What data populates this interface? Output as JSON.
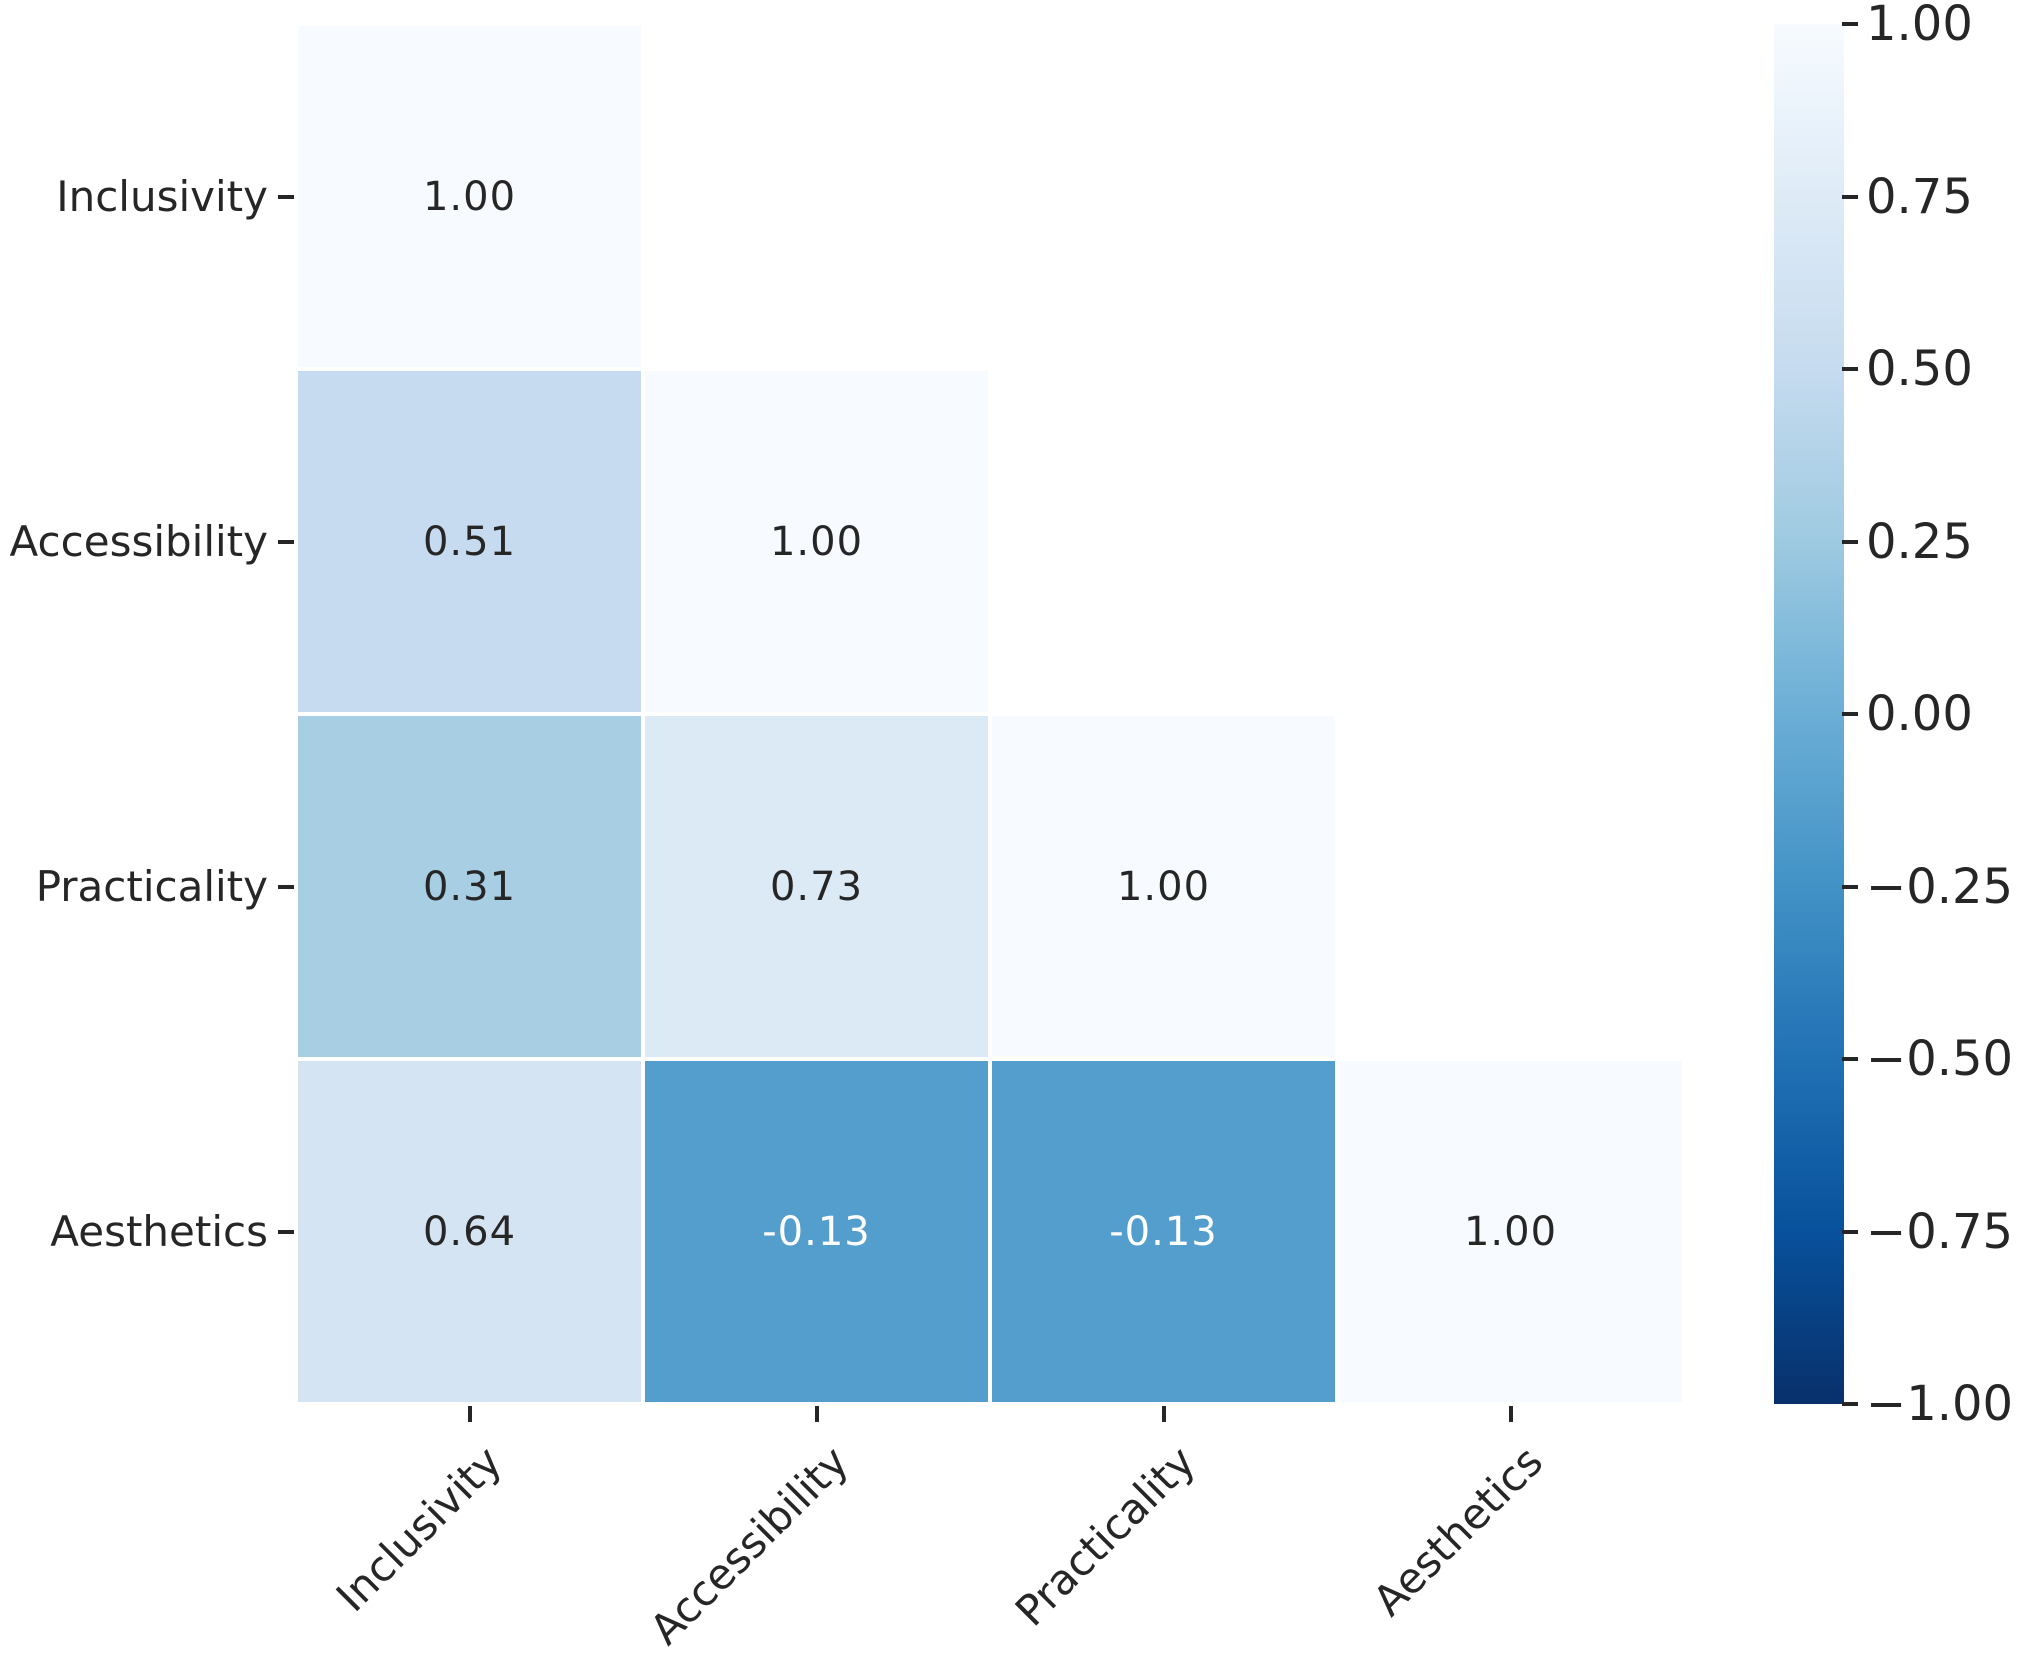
{
  "chart_data": {
    "type": "heatmap",
    "title": "",
    "xlabel": "",
    "ylabel": "",
    "colormap": "Blues reversed (high values light, low values dark)",
    "categories": [
      "Inclusivity",
      "Accessibility",
      "Practicality",
      "Aesthetics"
    ],
    "matrix": [
      [
        1.0,
        null,
        null,
        null
      ],
      [
        0.51,
        1.0,
        null,
        null
      ],
      [
        0.31,
        0.73,
        1.0,
        null
      ],
      [
        0.64,
        -0.13,
        -0.13,
        1.0
      ]
    ],
    "cells": [
      {
        "row": 0,
        "col": 0,
        "label": "1.00",
        "bg": "#f7fbff",
        "fg": "#262626"
      },
      {
        "row": 1,
        "col": 0,
        "label": "0.51",
        "bg": "#c6dbef",
        "fg": "#262626"
      },
      {
        "row": 1,
        "col": 1,
        "label": "1.00",
        "bg": "#f7fbff",
        "fg": "#262626"
      },
      {
        "row": 2,
        "col": 0,
        "label": "0.31",
        "bg": "#a8cee4",
        "fg": "#262626"
      },
      {
        "row": 2,
        "col": 1,
        "label": "0.73",
        "bg": "#dceaf6",
        "fg": "#262626"
      },
      {
        "row": 2,
        "col": 2,
        "label": "1.00",
        "bg": "#f7fbff",
        "fg": "#262626"
      },
      {
        "row": 3,
        "col": 0,
        "label": "0.64",
        "bg": "#d5e4f3",
        "fg": "#262626"
      },
      {
        "row": 3,
        "col": 1,
        "label": "-0.13",
        "bg": "#549ecd",
        "fg": "#ffffff"
      },
      {
        "row": 3,
        "col": 2,
        "label": "-0.13",
        "bg": "#549ecd",
        "fg": "#ffffff"
      },
      {
        "row": 3,
        "col": 3,
        "label": "1.00",
        "bg": "#f7fbff",
        "fg": "#262626"
      }
    ],
    "colorbar": {
      "vmin": -1.0,
      "vmax": 1.0,
      "tick_labels": [
        "1.00",
        "0.75",
        "0.50",
        "0.25",
        "0.00",
        "−0.25",
        "−0.50",
        "−0.75",
        "−1.00"
      ],
      "gradient": [
        "#f7fbff",
        "#deebf7",
        "#c6dbef",
        "#9ecae1",
        "#6baed6",
        "#4292c6",
        "#2171b5",
        "#08519c",
        "#08306b"
      ]
    },
    "layout_hints": {
      "x_tick_rotation": 45,
      "grid": "off",
      "legend": "colorbar-right"
    }
  }
}
